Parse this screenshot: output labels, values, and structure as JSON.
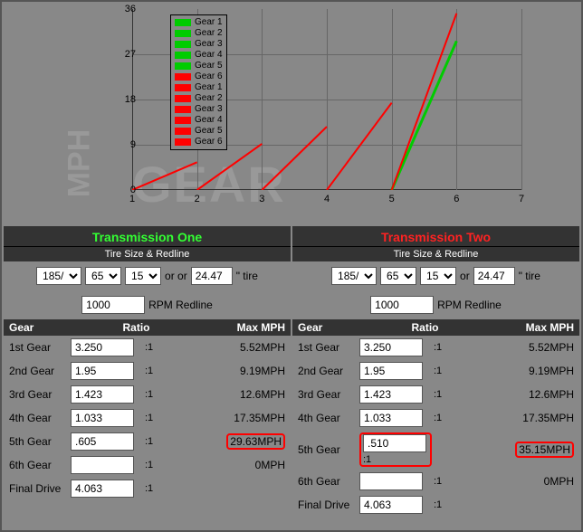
{
  "chart": {
    "type": "line",
    "background_color": "#888888",
    "grid_color": "#666666",
    "axis_color": "#333333",
    "xlim": [
      1,
      7
    ],
    "ylim": [
      0,
      36
    ],
    "xtick_step": 1,
    "ytick_step": 9,
    "yticks": [
      "36",
      "27",
      "18",
      "9",
      "0"
    ],
    "xticks": [
      "1",
      "2",
      "3",
      "4",
      "5",
      "6",
      "7"
    ],
    "watermark_large": "GEAR",
    "watermark_small": "MPH",
    "legend": {
      "items": [
        {
          "label": "Gear 1",
          "color": "#00cc00"
        },
        {
          "label": "Gear 2",
          "color": "#00cc00"
        },
        {
          "label": "Gear 3",
          "color": "#00cc00"
        },
        {
          "label": "Gear 4",
          "color": "#00cc00"
        },
        {
          "label": "Gear 5",
          "color": "#00cc00"
        },
        {
          "label": "Gear 6",
          "color": "#ff0000"
        },
        {
          "label": "Gear 1",
          "color": "#ff0000"
        },
        {
          "label": "Gear 2",
          "color": "#ff0000"
        },
        {
          "label": "Gear 3",
          "color": "#ff0000"
        },
        {
          "label": "Gear 4",
          "color": "#ff0000"
        },
        {
          "label": "Gear 5",
          "color": "#ff0000"
        },
        {
          "label": "Gear 6",
          "color": "#ff0000"
        }
      ]
    },
    "series": [
      {
        "color": "#ff0000",
        "width": 2,
        "points": [
          [
            1,
            0
          ],
          [
            2,
            5.52
          ]
        ]
      },
      {
        "color": "#ff0000",
        "width": 2,
        "points": [
          [
            2,
            0
          ],
          [
            3,
            9.19
          ]
        ]
      },
      {
        "color": "#ff0000",
        "width": 2,
        "points": [
          [
            3,
            0
          ],
          [
            4,
            12.6
          ]
        ]
      },
      {
        "color": "#ff0000",
        "width": 2,
        "points": [
          [
            4,
            0
          ],
          [
            5,
            17.35
          ]
        ]
      },
      {
        "color": "#00cc00",
        "width": 3,
        "points": [
          [
            5,
            0
          ],
          [
            6,
            29.63
          ]
        ]
      },
      {
        "color": "#ff0000",
        "width": 2,
        "points": [
          [
            5,
            0
          ],
          [
            6,
            35.15
          ]
        ]
      }
    ]
  },
  "transmissions": [
    {
      "title": "Transmission One",
      "tire_label": "Tire Size & Redline",
      "tire": {
        "width": "185/",
        "aspect": "65",
        "wheel": "15",
        "or_label": "or or",
        "diameter": "24.47",
        "unit": "\" tire"
      },
      "redline": {
        "value": "1000",
        "label": "RPM Redline"
      },
      "headers": {
        "gear": "Gear",
        "ratio": "Ratio",
        "max": "Max MPH"
      },
      "rows": [
        {
          "label": "1st Gear",
          "ratio": "3.250",
          "mph": "5.52MPH",
          "hl": false
        },
        {
          "label": "2nd Gear",
          "ratio": "1.95",
          "mph": "9.19MPH",
          "hl": false
        },
        {
          "label": "3rd Gear",
          "ratio": "1.423",
          "mph": "12.6MPH",
          "hl": false
        },
        {
          "label": "4th Gear",
          "ratio": "1.033",
          "mph": "17.35MPH",
          "hl": false
        },
        {
          "label": "5th Gear",
          "ratio": ".605",
          "mph": "29.63MPH",
          "hl": true,
          "hl_ratio": false
        },
        {
          "label": "6th Gear",
          "ratio": "",
          "mph": "0MPH",
          "hl": false
        },
        {
          "label": "Final Drive",
          "ratio": "4.063",
          "mph": "",
          "hl": false
        }
      ]
    },
    {
      "title": "Transmission Two",
      "tire_label": "Tire Size & Redline",
      "tire": {
        "width": "185/",
        "aspect": "65",
        "wheel": "15",
        "or_label": "or",
        "diameter": "24.47",
        "unit": "\" tire"
      },
      "redline": {
        "value": "1000",
        "label": "RPM Redline"
      },
      "headers": {
        "gear": "Gear",
        "ratio": "Ratio",
        "max": "Max MPH"
      },
      "rows": [
        {
          "label": "1st Gear",
          "ratio": "3.250",
          "mph": "5.52MPH",
          "hl": false
        },
        {
          "label": "2nd Gear",
          "ratio": "1.95",
          "mph": "9.19MPH",
          "hl": false
        },
        {
          "label": "3rd Gear",
          "ratio": "1.423",
          "mph": "12.6MPH",
          "hl": false
        },
        {
          "label": "4th Gear",
          "ratio": "1.033",
          "mph": "17.35MPH",
          "hl": false
        },
        {
          "label": "5th Gear",
          "ratio": ".510",
          "mph": "35.15MPH",
          "hl": true,
          "hl_ratio": true
        },
        {
          "label": "6th Gear",
          "ratio": "",
          "mph": "0MPH",
          "hl": false
        },
        {
          "label": "Final Drive",
          "ratio": "4.063",
          "mph": "",
          "hl": false
        }
      ]
    }
  ],
  "ratio_suffix": ":1"
}
